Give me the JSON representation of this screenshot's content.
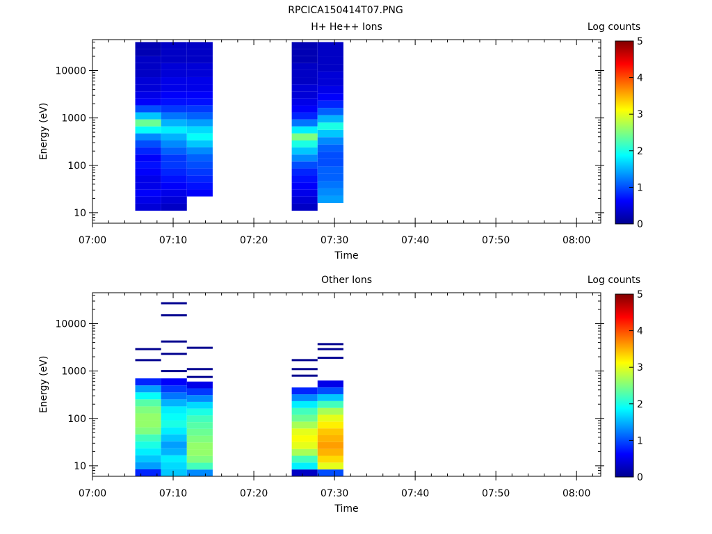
{
  "figure_title": "RPCICA150414T07.PNG",
  "colorbar_ticks": [
    "0",
    "1",
    "2",
    "3",
    "4",
    "5"
  ],
  "colors": {
    "axis": "#000000",
    "background": "#ffffff"
  },
  "panels": [
    {
      "title": "H+ He++ Ions",
      "ylabel": "Energy (eV)",
      "xlabel": "Time",
      "cbar_label": "Log counts"
    },
    {
      "title": "Other Ions",
      "ylabel": "Energy (eV)",
      "xlabel": "Time",
      "cbar_label": "Log counts"
    }
  ],
  "chart_data": [
    {
      "type": "heatmap",
      "title": "H+ He++ Ions",
      "xlabel": "Time",
      "ylabel": "Energy (eV)",
      "colorbar_label": "Log counts",
      "x_tick_labels": [
        "07:00",
        "07:10",
        "07:20",
        "07:30",
        "07:40",
        "07:50",
        "08:00"
      ],
      "y_tick_labels": [
        "10",
        "100",
        "1000",
        "10000"
      ],
      "yscale": "log",
      "ylim": [
        6,
        45000
      ],
      "colorbar_range": [
        0,
        5
      ],
      "x_start_minutes": [
        5.3,
        8.5,
        11.7,
        24.7,
        27.9
      ],
      "x_end_minutes": [
        8.5,
        11.7,
        14.9,
        27.9,
        31.1
      ],
      "blocks": [
        {
          "start": "07:05",
          "end": "07:08",
          "energy_range_eV": [
            11,
            40000
          ],
          "log_counts": [
            0.4,
            0.5,
            0.6,
            0.5,
            0.5,
            0.6,
            0.7,
            0.6,
            0.8,
            1.0,
            1.3,
            1.9,
            2.4,
            1.6,
            1.0,
            0.6,
            0.5,
            0.4,
            0.4,
            0.3,
            0.3,
            0.3,
            0.2,
            0.2
          ]
        },
        {
          "start": "07:08",
          "end": "07:11",
          "energy_range_eV": [
            11,
            40000
          ],
          "log_counts": [
            0.3,
            0.4,
            0.5,
            0.6,
            0.7,
            0.8,
            0.9,
            0.9,
            1.1,
            1.3,
            1.5,
            1.8,
            1.5,
            1.2,
            0.9,
            0.7,
            0.6,
            0.5,
            0.5,
            0.4,
            0.4,
            0.3,
            0.3,
            0.3
          ]
        },
        {
          "start": "07:11",
          "end": "07:14",
          "energy_range_eV": [
            22,
            40000
          ],
          "log_counts": [
            0.6,
            0.7,
            0.8,
            0.9,
            1.0,
            1.1,
            1.3,
            1.6,
            1.9,
            1.7,
            1.4,
            1.1,
            0.9,
            0.7,
            0.6,
            0.5,
            0.5,
            0.4,
            0.4,
            0.3,
            0.3,
            0.3
          ]
        },
        {
          "start": "07:24",
          "end": "07:27",
          "energy_range_eV": [
            11,
            40000
          ],
          "log_counts": [
            0.3,
            0.4,
            0.5,
            0.6,
            0.7,
            0.8,
            1.0,
            1.3,
            1.6,
            2.0,
            2.5,
            1.8,
            1.2,
            0.8,
            0.6,
            0.5,
            0.4,
            0.4,
            0.3,
            0.3,
            0.3,
            0.2,
            0.2,
            0.2
          ]
        },
        {
          "start": "07:27",
          "end": "07:31",
          "energy_range_eV": [
            16,
            40000
          ],
          "log_counts": [
            1.4,
            1.3,
            1.2,
            1.1,
            1.1,
            1.0,
            1.0,
            1.1,
            1.3,
            1.6,
            2.0,
            1.5,
            1.1,
            0.8,
            0.6,
            0.5,
            0.4,
            0.4,
            0.3,
            0.3,
            0.3,
            0.3
          ]
        }
      ]
    },
    {
      "type": "heatmap",
      "title": "Other Ions",
      "xlabel": "Time",
      "ylabel": "Energy (eV)",
      "colorbar_label": "Log counts",
      "x_tick_labels": [
        "07:00",
        "07:10",
        "07:20",
        "07:30",
        "07:40",
        "07:50",
        "08:00"
      ],
      "y_tick_labels": [
        "10",
        "100",
        "1000",
        "10000"
      ],
      "yscale": "log",
      "ylim": [
        6,
        45000
      ],
      "colorbar_range": [
        0,
        5
      ],
      "x_start_minutes": [
        5.3,
        8.5,
        11.7,
        24.7,
        27.9
      ],
      "x_end_minutes": [
        8.5,
        11.7,
        14.9,
        27.9,
        31.1
      ],
      "blocks": [
        {
          "start": "07:05",
          "end": "07:08",
          "energy_range_eV": [
            6,
            700
          ],
          "log_counts": [
            0.8,
            1.4,
            1.6,
            1.8,
            2.0,
            2.2,
            2.5,
            2.6,
            2.6,
            2.5,
            2.3,
            1.9,
            1.4,
            0.8
          ],
          "sparse_lines_eV": [
            1700,
            2900
          ]
        },
        {
          "start": "07:08",
          "end": "07:11",
          "energy_range_eV": [
            6,
            700
          ],
          "log_counts": [
            1.6,
            1.7,
            1.8,
            1.5,
            1.4,
            1.6,
            1.8,
            2.0,
            1.9,
            1.8,
            1.5,
            1.2,
            0.9,
            0.6
          ],
          "sparse_lines_eV": [
            1000,
            2300,
            4200,
            15000,
            27000
          ]
        },
        {
          "start": "07:11",
          "end": "07:14",
          "energy_range_eV": [
            6,
            600
          ],
          "log_counts": [
            1.3,
            2.2,
            2.5,
            2.6,
            2.6,
            2.5,
            2.4,
            2.3,
            2.2,
            2.0,
            1.7,
            1.3,
            0.9,
            0.5
          ],
          "sparse_lines_eV": [
            750,
            1100,
            3100
          ]
        },
        {
          "start": "07:24",
          "end": "07:27",
          "energy_range_eV": [
            6,
            450
          ],
          "log_counts": [
            0.3,
            1.8,
            2.2,
            2.7,
            3.0,
            3.1,
            3.0,
            2.7,
            2.4,
            2.2,
            1.8,
            1.3,
            0.8
          ],
          "sparse_lines_eV": [
            800,
            1100,
            1700
          ]
        },
        {
          "start": "07:27",
          "end": "07:31",
          "energy_range_eV": [
            6,
            630
          ],
          "log_counts": [
            1.0,
            3.0,
            3.3,
            3.5,
            3.6,
            3.5,
            3.4,
            3.2,
            3.0,
            2.7,
            2.2,
            1.6,
            1.0,
            0.5
          ],
          "sparse_lines_eV": [
            1900,
            2900,
            3700
          ]
        }
      ]
    }
  ]
}
